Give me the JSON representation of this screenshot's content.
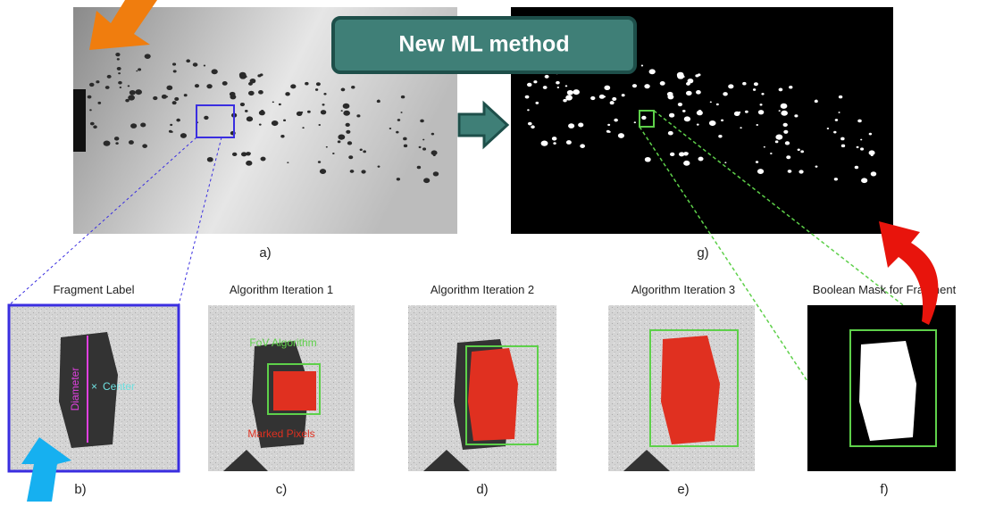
{
  "callout": "New ML method",
  "top_panels": [
    {
      "label": "a)"
    },
    {
      "label": "g)"
    }
  ],
  "bottom_panels": [
    {
      "title": "Fragment Label",
      "label": "b)",
      "annotations": [
        "Diameter",
        "Center"
      ]
    },
    {
      "title": "Algorithm Iteration 1",
      "label": "c)",
      "annotations": [
        "FoV Algorithm",
        "Marked Pixels"
      ]
    },
    {
      "title": "Algorithm Iteration 2",
      "label": "d)"
    },
    {
      "title": "Algorithm Iteration 3",
      "label": "e)"
    },
    {
      "title": "Boolean Mask for Fragment",
      "label": "f)"
    }
  ]
}
